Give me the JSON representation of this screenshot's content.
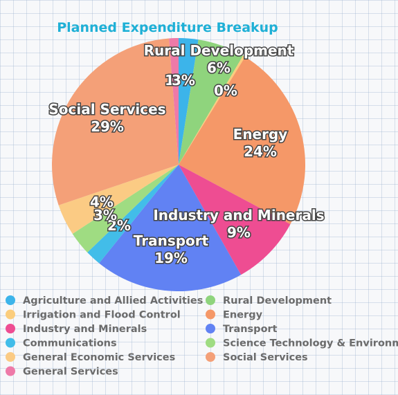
{
  "chart_data": {
    "type": "pie",
    "title": "Planned Expenditure Breakup",
    "categories": [
      "Agriculture and Allied Activities",
      "Rural Development",
      "Irrigation and Flood Control",
      "Energy",
      "Industry and Minerals",
      "Transport",
      "Communications",
      "Science Technology & Environment",
      "General Economic Services",
      "Social Services",
      "General Services"
    ],
    "values": [
      2.5,
      6,
      0.3,
      24,
      9,
      19,
      2,
      3,
      4,
      29,
      1.2
    ],
    "colors": [
      "#3cb4ea",
      "#8fd47d",
      "#fbcd7d",
      "#f59868",
      "#ee4d92",
      "#6182f3",
      "#42bde9",
      "#9fdc82",
      "#fbcb84",
      "#f4a078",
      "#ee7aa8"
    ],
    "slice_labels": [
      "",
      "Rural Development\n6%",
      "0%",
      "Energy\n24%",
      "Industry and Minerals\n9%",
      "Transport\n19%",
      "2%",
      "3%",
      "4%",
      "Social Services\n29%",
      "1"
    ],
    "extra_labels": [
      "3%"
    ],
    "legend_placement": "bottom"
  }
}
